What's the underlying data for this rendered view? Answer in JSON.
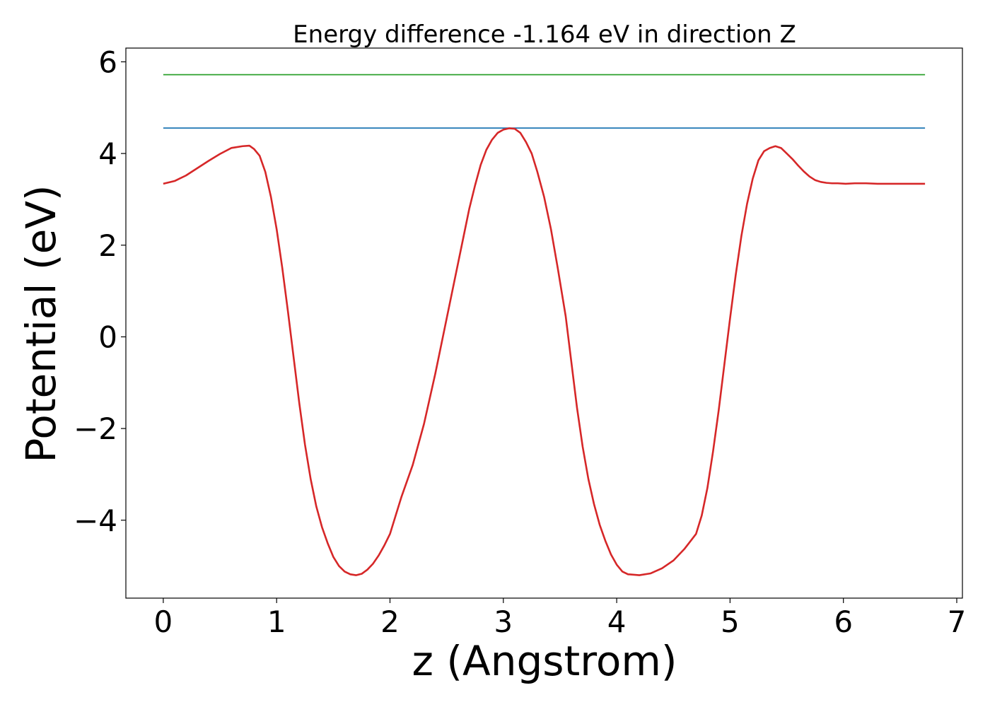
{
  "chart_data": {
    "type": "line",
    "title": "Energy difference -1.164 eV in direction Z",
    "xlabel": "z (Angstrom)",
    "ylabel": "Potential (eV)",
    "xlim": [
      -0.33,
      7.05
    ],
    "ylim": [
      -5.7,
      6.3
    ],
    "xticks": [
      0,
      1,
      2,
      3,
      4,
      5,
      6,
      7
    ],
    "yticks": [
      -4,
      -2,
      0,
      2,
      4,
      6
    ],
    "ytick_labels": [
      "−4",
      "−2",
      "0",
      "2",
      "4",
      "6"
    ],
    "grid": false,
    "series": [
      {
        "color": "#2ca02c",
        "x": [
          0,
          6.72
        ],
        "y": [
          5.72,
          5.72
        ]
      },
      {
        "color": "#1f77b4",
        "x": [
          0,
          6.72
        ],
        "y": [
          4.555,
          4.555
        ]
      },
      {
        "color": "#d62728",
        "x": [
          0,
          0.1,
          0.2,
          0.3,
          0.4,
          0.5,
          0.6,
          0.7,
          0.76,
          0.8,
          0.85,
          0.9,
          0.95,
          1.0,
          1.05,
          1.1,
          1.15,
          1.2,
          1.25,
          1.3,
          1.35,
          1.4,
          1.45,
          1.5,
          1.55,
          1.6,
          1.65,
          1.7,
          1.75,
          1.8,
          1.85,
          1.9,
          1.95,
          2.0,
          2.05,
          2.1,
          2.2,
          2.3,
          2.4,
          2.5,
          2.6,
          2.65,
          2.7,
          2.75,
          2.8,
          2.85,
          2.9,
          2.95,
          3.0,
          3.05,
          3.1,
          3.15,
          3.2,
          3.25,
          3.3,
          3.36,
          3.42,
          3.48,
          3.55,
          3.6,
          3.65,
          3.7,
          3.75,
          3.8,
          3.85,
          3.9,
          3.95,
          4.0,
          4.05,
          4.1,
          4.2,
          4.3,
          4.4,
          4.5,
          4.6,
          4.7,
          4.75,
          4.8,
          4.85,
          4.9,
          4.95,
          5.0,
          5.05,
          5.1,
          5.15,
          5.2,
          5.25,
          5.3,
          5.35,
          5.4,
          5.45,
          5.5,
          5.55,
          5.6,
          5.65,
          5.7,
          5.75,
          5.8,
          5.85,
          5.9,
          5.95,
          6.02,
          6.1,
          6.2,
          6.3,
          6.4,
          6.5,
          6.6,
          6.72
        ],
        "y": [
          3.34,
          3.4,
          3.52,
          3.68,
          3.84,
          3.99,
          4.12,
          4.16,
          4.17,
          4.1,
          3.95,
          3.6,
          3.05,
          2.35,
          1.5,
          0.55,
          -0.45,
          -1.45,
          -2.35,
          -3.1,
          -3.7,
          -4.15,
          -4.5,
          -4.8,
          -5.0,
          -5.12,
          -5.18,
          -5.2,
          -5.17,
          -5.08,
          -4.95,
          -4.77,
          -4.55,
          -4.3,
          -3.9,
          -3.5,
          -2.8,
          -1.9,
          -0.8,
          0.4,
          1.6,
          2.2,
          2.8,
          3.3,
          3.75,
          4.08,
          4.3,
          4.45,
          4.52,
          4.55,
          4.54,
          4.45,
          4.25,
          4.0,
          3.6,
          3.05,
          2.35,
          1.5,
          0.45,
          -0.55,
          -1.55,
          -2.4,
          -3.1,
          -3.65,
          -4.1,
          -4.45,
          -4.75,
          -4.97,
          -5.12,
          -5.18,
          -5.2,
          -5.16,
          -5.05,
          -4.88,
          -4.62,
          -4.3,
          -3.9,
          -3.3,
          -2.5,
          -1.6,
          -0.6,
          0.4,
          1.35,
          2.2,
          2.9,
          3.45,
          3.85,
          4.05,
          4.12,
          4.16,
          4.12,
          4.0,
          3.88,
          3.74,
          3.61,
          3.5,
          3.42,
          3.38,
          3.36,
          3.35,
          3.35,
          3.34,
          3.35,
          3.35,
          3.34,
          3.34,
          3.34,
          3.34,
          3.34
        ]
      }
    ]
  }
}
